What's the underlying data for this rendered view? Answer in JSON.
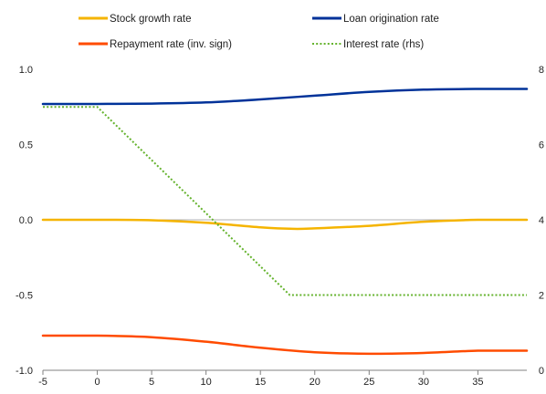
{
  "chart_data": {
    "type": "line",
    "title": "",
    "xlabel": "",
    "ylabel": "",
    "y2label": "",
    "xlim": [
      -5,
      39.5
    ],
    "ylim": [
      -1.0,
      1.0
    ],
    "y2lim": [
      0,
      8
    ],
    "x_ticks": [
      -5,
      0,
      5,
      10,
      15,
      20,
      25,
      30,
      35
    ],
    "y_ticks": [
      1.0,
      0.5,
      0.0,
      -0.5,
      -1.0
    ],
    "y_tick_labels": [
      "1.0",
      "0.5",
      "0.0",
      "-0.5",
      "-1.0"
    ],
    "y2_ticks": [
      8,
      6,
      4,
      2,
      0
    ],
    "y2_tick_labels": [
      "8",
      "6",
      "4",
      "2",
      "0"
    ],
    "grid": false,
    "zero_line": true,
    "legend_position": "top",
    "series": [
      {
        "name": "Stock growth rate",
        "axis": "left",
        "color": "#F5B400",
        "style": "solid",
        "x": [
          -5,
          0,
          5,
          10,
          15,
          18,
          20,
          25,
          30,
          35,
          39.5
        ],
        "y": [
          0.0,
          0.0,
          -0.003,
          -0.02,
          -0.05,
          -0.06,
          -0.057,
          -0.04,
          -0.013,
          0.0,
          0.0
        ]
      },
      {
        "name": "Loan origination rate",
        "axis": "left",
        "color": "#003299",
        "style": "solid",
        "x": [
          -5,
          0,
          5,
          10,
          15,
          20,
          25,
          30,
          35,
          39.5
        ],
        "y": [
          0.77,
          0.77,
          0.772,
          0.78,
          0.8,
          0.825,
          0.85,
          0.865,
          0.87,
          0.87
        ]
      },
      {
        "name": "Repayment rate (inv. sign)",
        "axis": "left",
        "color": "#FF4B00",
        "style": "solid",
        "x": [
          -5,
          0,
          5,
          10,
          15,
          20,
          25,
          30,
          35,
          39.5
        ],
        "y": [
          -0.77,
          -0.77,
          -0.78,
          -0.81,
          -0.85,
          -0.88,
          -0.89,
          -0.885,
          -0.87,
          -0.87
        ]
      },
      {
        "name": "Interest rate (rhs)",
        "axis": "right",
        "color": "#65B32E",
        "style": "dotted",
        "x": [
          -5,
          0,
          17.7,
          39.5
        ],
        "y": [
          7.0,
          7.0,
          2.0,
          2.0
        ]
      }
    ]
  }
}
